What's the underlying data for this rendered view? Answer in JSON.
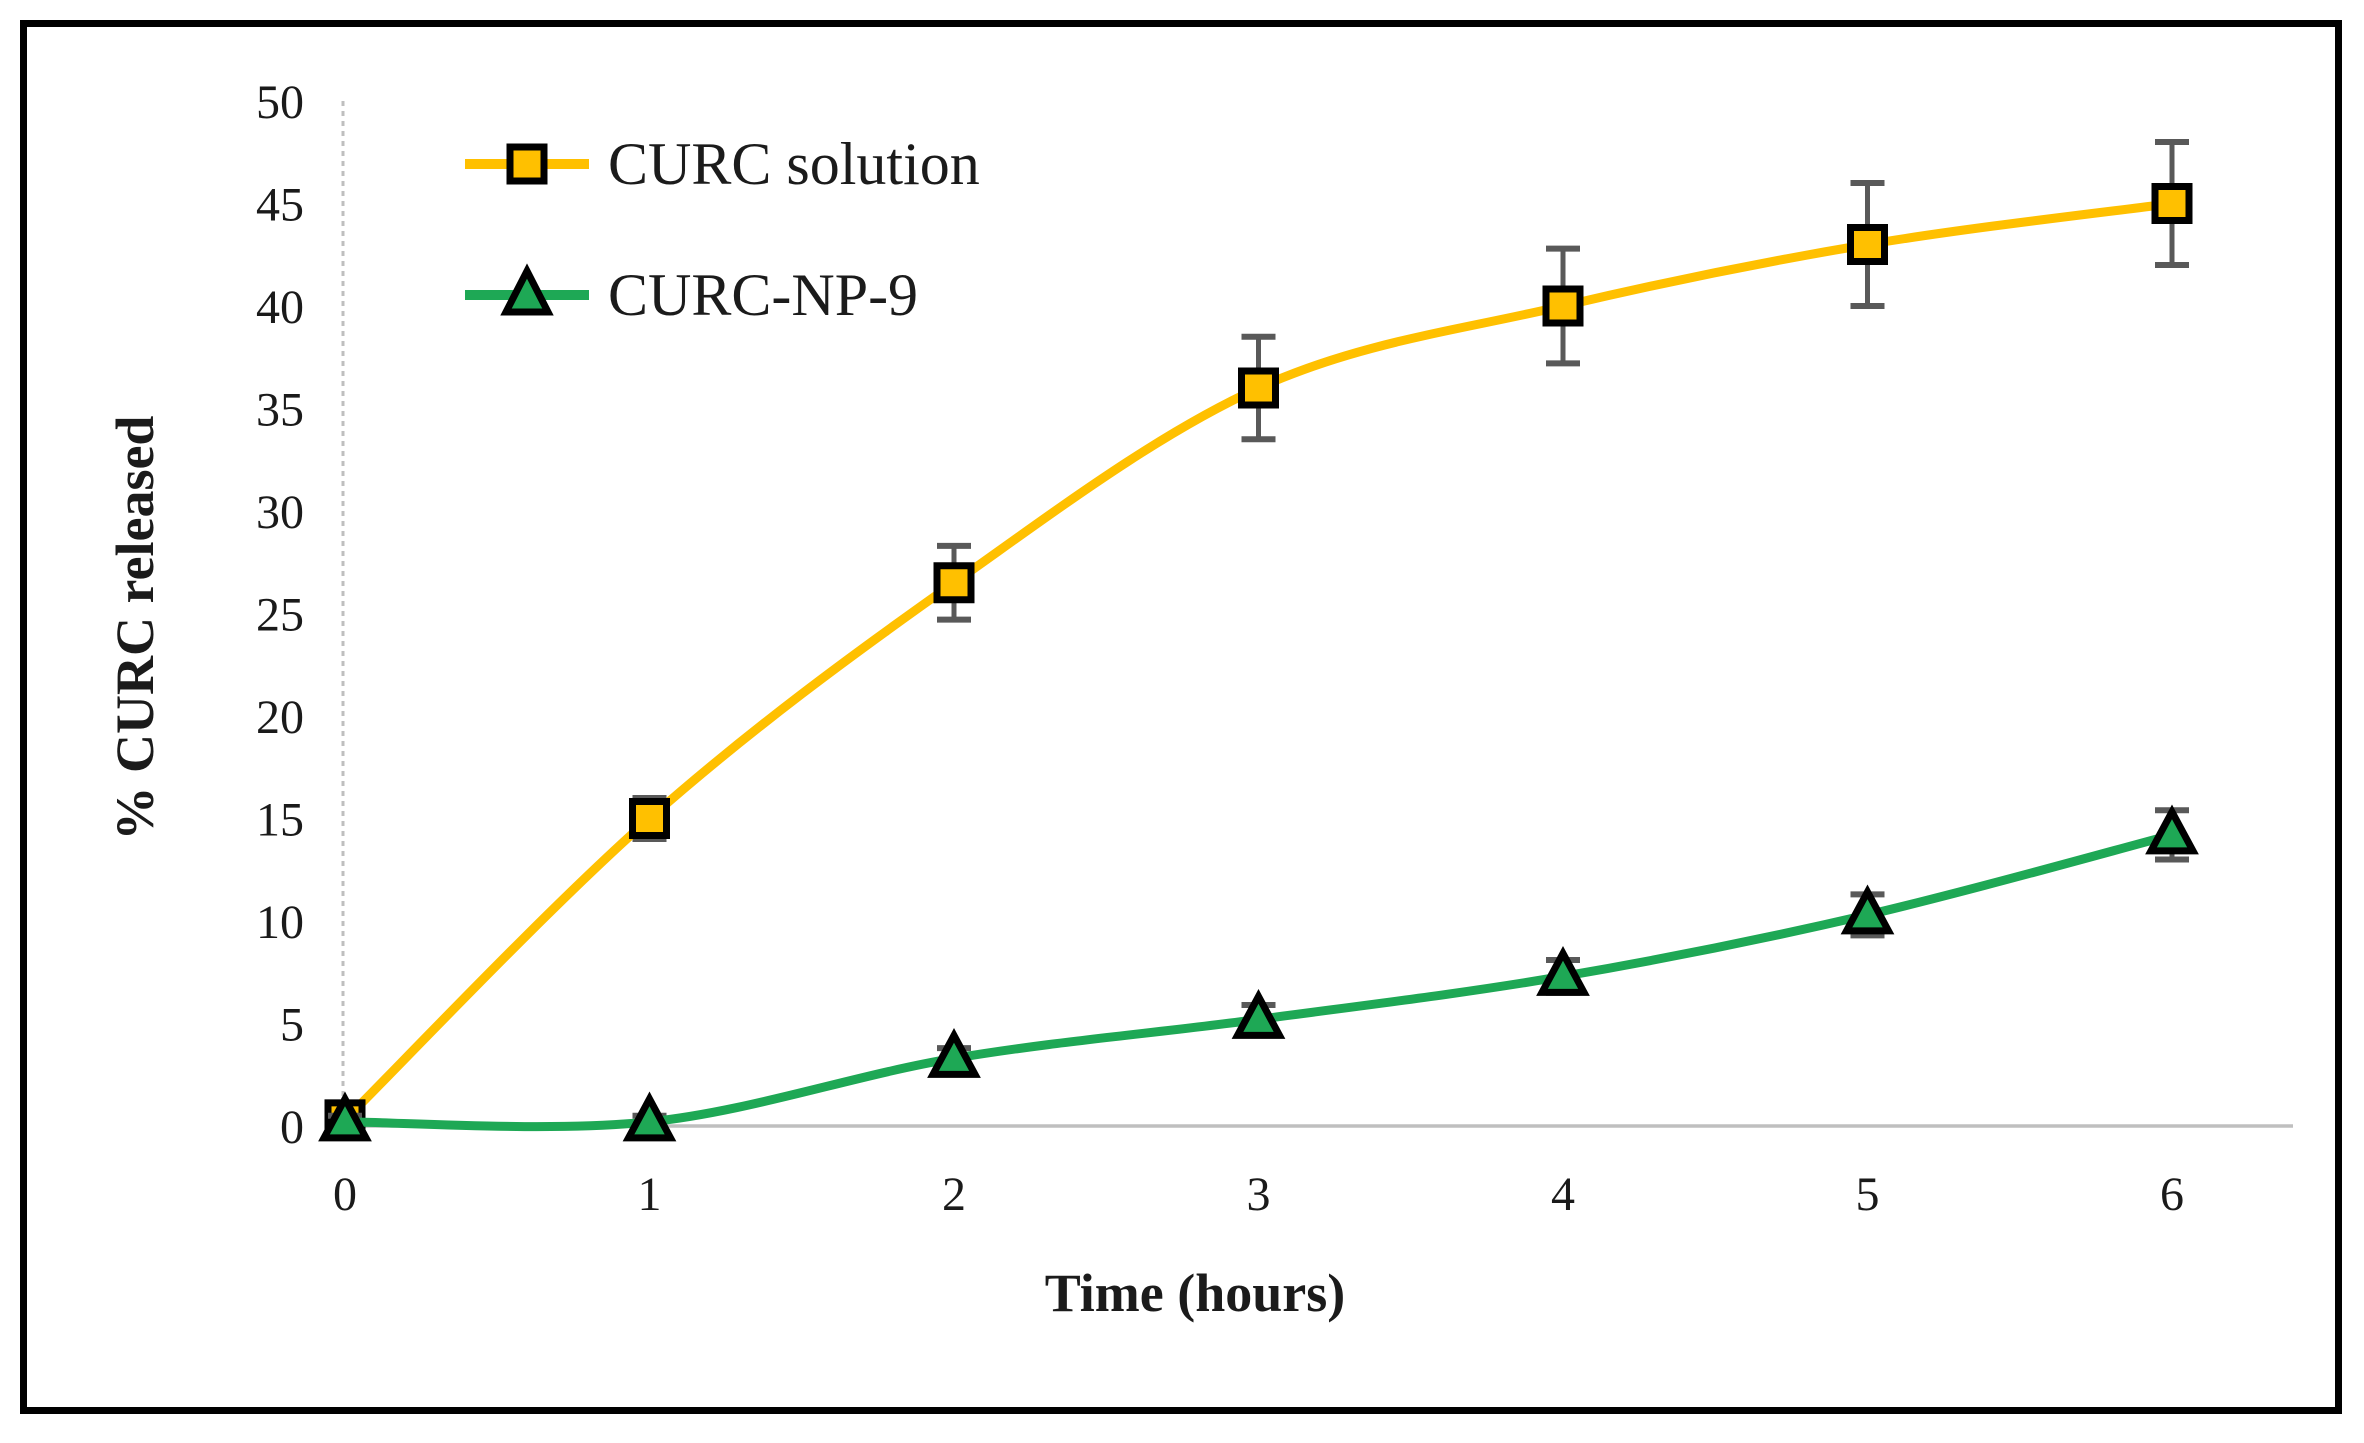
{
  "chart_data": {
    "type": "line",
    "title": "",
    "xlabel": "Time (hours)",
    "ylabel": "% CURC released",
    "x": [
      0,
      1,
      2,
      3,
      4,
      5,
      6
    ],
    "xticks": [
      "0",
      "1",
      "2",
      "3",
      "4",
      "5",
      "6"
    ],
    "yticks": [
      "0",
      "5",
      "10",
      "15",
      "20",
      "25",
      "30",
      "35",
      "40",
      "45",
      "50"
    ],
    "xlim": [
      0,
      6
    ],
    "ylim": [
      0,
      50
    ],
    "grid": false,
    "line_style": "smoothed",
    "legend_position": "top-left-inside",
    "series": [
      {
        "name": "CURC solution",
        "color": "#FFC000",
        "marker": "square",
        "marker_border": "#000000",
        "values": [
          0.3,
          15,
          26.5,
          36,
          40,
          43,
          45
        ],
        "error_bars": [
          0.4,
          1,
          1.8,
          2.5,
          2.8,
          3,
          3
        ]
      },
      {
        "name": "CURC-NP-9",
        "color": "#1EA855",
        "marker": "triangle",
        "marker_border": "#000000",
        "values": [
          0.2,
          0.2,
          3.3,
          5.2,
          7.3,
          10.3,
          14.2
        ],
        "error_bars": [
          0.3,
          0.3,
          0.5,
          0.7,
          0.8,
          1,
          1.2
        ]
      }
    ],
    "axis_color": "#BFBFBF",
    "error_bar_color": "#595959",
    "tick_label_color": "#1a1a1a",
    "frame_color": "#000000",
    "background": "#FFFFFF"
  }
}
